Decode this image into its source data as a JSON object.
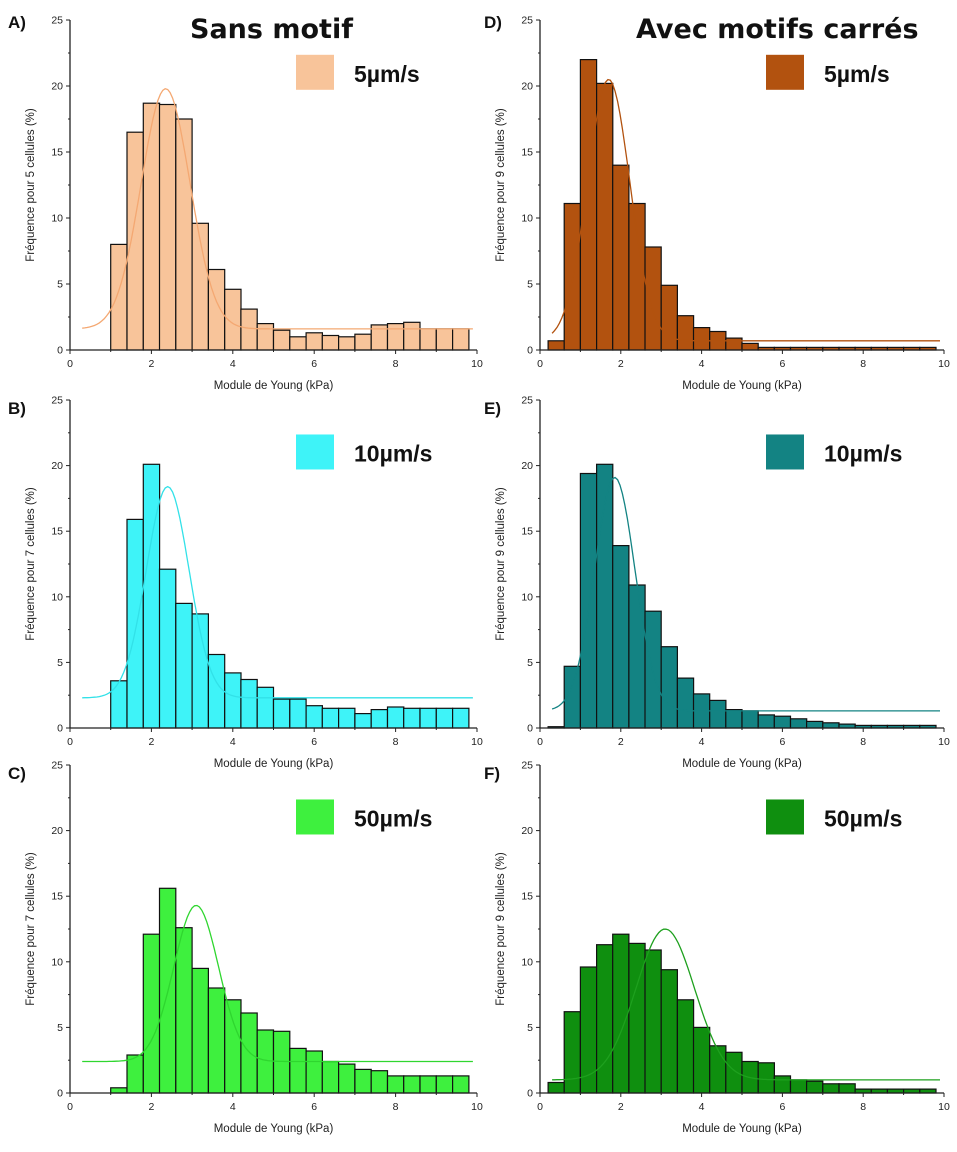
{
  "column_titles": {
    "left": "Sans motif",
    "right": "Avec motifs carrés"
  },
  "chart_data": [
    {
      "type": "bar",
      "panel_label": "A)",
      "legend": "5µm/s",
      "color": "#F8C49A",
      "curve_color": "#F4A872",
      "xlabel": "Module de Young (kPa)",
      "ylabel": "Fréquence pour 5 cellules (%)",
      "xlim": [
        0,
        10
      ],
      "ylim": [
        0,
        25
      ],
      "xticks": [
        0,
        2,
        4,
        6,
        8,
        10
      ],
      "yticks": [
        0,
        5,
        10,
        15,
        20,
        25
      ],
      "bin_width": 0.4,
      "x": [
        1.2,
        1.6,
        2.0,
        2.4,
        2.8,
        3.2,
        3.6,
        4.0,
        4.4,
        4.8,
        5.2,
        5.6,
        6.0,
        6.4,
        6.8,
        7.2,
        7.6,
        8.0,
        8.4,
        8.8,
        9.2,
        9.6
      ],
      "values": [
        8.0,
        16.5,
        18.7,
        18.6,
        17.5,
        9.6,
        6.1,
        4.6,
        3.1,
        2.0,
        1.5,
        1.0,
        1.3,
        1.1,
        1.0,
        1.2,
        1.9,
        2.0,
        2.1,
        1.6,
        1.6,
        1.6
      ],
      "fit": {
        "y0": 1.6,
        "xc": 2.35,
        "w": 1.2,
        "A": 18.2,
        "xstart": 0.3,
        "xend": 9.9
      }
    },
    {
      "type": "bar",
      "panel_label": "B)",
      "legend": "10µm/s",
      "color": "#3EF3F8",
      "curve_color": "#32E1E8",
      "xlabel": "Module de Young (kPa)",
      "ylabel": "Fréquence pour 7 cellules (%)",
      "xlim": [
        0,
        10
      ],
      "ylim": [
        0,
        25
      ],
      "xticks": [
        0,
        2,
        4,
        6,
        8,
        10
      ],
      "yticks": [
        0,
        5,
        10,
        15,
        20,
        25
      ],
      "bin_width": 0.4,
      "x": [
        1.2,
        1.6,
        2.0,
        2.4,
        2.8,
        3.2,
        3.6,
        4.0,
        4.4,
        4.8,
        5.2,
        5.6,
        6.0,
        6.4,
        6.8,
        7.2,
        7.6,
        8.0,
        8.4,
        8.8,
        9.2,
        9.6
      ],
      "values": [
        3.6,
        15.9,
        20.1,
        12.1,
        9.5,
        8.7,
        5.6,
        4.2,
        3.7,
        3.1,
        2.2,
        2.2,
        1.7,
        1.5,
        1.5,
        1.1,
        1.4,
        1.6,
        1.5,
        1.5,
        1.5,
        1.5
      ],
      "fit": {
        "y0": 2.3,
        "xc": 2.4,
        "w": 1.05,
        "A": 16.1,
        "xstart": 0.3,
        "xend": 9.9
      }
    },
    {
      "type": "bar",
      "panel_label": "C)",
      "legend": "50µm/s",
      "color": "#3EF03E",
      "curve_color": "#2FD62F",
      "xlabel": "Module de Young (kPa)",
      "ylabel": "Fréquence pour 7 cellules (%)",
      "xlim": [
        0,
        10
      ],
      "ylim": [
        0,
        25
      ],
      "xticks": [
        0,
        2,
        4,
        6,
        8,
        10
      ],
      "yticks": [
        0,
        5,
        10,
        15,
        20,
        25
      ],
      "bin_width": 0.4,
      "x": [
        1.2,
        1.6,
        2.0,
        2.4,
        2.8,
        3.2,
        3.6,
        4.0,
        4.4,
        4.8,
        5.2,
        5.6,
        6.0,
        6.4,
        6.8,
        7.2,
        7.6,
        8.0,
        8.4,
        8.8,
        9.2,
        9.6
      ],
      "values": [
        0.4,
        2.9,
        12.1,
        15.6,
        12.6,
        9.5,
        8.0,
        7.1,
        6.1,
        4.8,
        4.7,
        3.4,
        3.2,
        2.4,
        2.2,
        1.8,
        1.7,
        1.3,
        1.3,
        1.3,
        1.3,
        1.3
      ],
      "fit": {
        "y0": 2.4,
        "xc": 3.1,
        "w": 1.1,
        "A": 11.9,
        "xstart": 0.3,
        "xend": 9.9
      }
    },
    {
      "type": "bar",
      "panel_label": "D)",
      "legend": "5µm/s",
      "color": "#B2520F",
      "curve_color": "#B2520F",
      "xlabel": "Module de Young (kPa)",
      "ylabel": "Fréquence pour 9 cellules (%)",
      "xlim": [
        0,
        10
      ],
      "ylim": [
        0,
        25
      ],
      "xticks": [
        0,
        2,
        4,
        6,
        8,
        10
      ],
      "yticks": [
        0,
        5,
        10,
        15,
        20,
        25
      ],
      "bin_width": 0.4,
      "x": [
        0.4,
        0.8,
        1.2,
        1.6,
        2.0,
        2.4,
        2.8,
        3.2,
        3.6,
        4.0,
        4.4,
        4.8,
        5.2,
        5.6,
        6.0,
        6.4,
        6.8,
        7.2,
        7.6,
        8.0,
        8.4,
        8.8,
        9.2,
        9.6
      ],
      "values": [
        0.7,
        11.1,
        22.0,
        20.2,
        14.0,
        11.1,
        7.8,
        4.9,
        2.6,
        1.7,
        1.4,
        0.9,
        0.5,
        0.2,
        0.2,
        0.2,
        0.2,
        0.2,
        0.2,
        0.2,
        0.2,
        0.2,
        0.2,
        0.2
      ],
      "fit": {
        "y0": 0.7,
        "xc": 1.7,
        "w": 1.05,
        "A": 19.8,
        "xstart": 0.3,
        "xend": 9.9
      }
    },
    {
      "type": "bar",
      "panel_label": "E)",
      "legend": "10µm/s",
      "color": "#138383",
      "curve_color": "#138383",
      "xlabel": "Module de Young (kPa)",
      "ylabel": "Fréquence pour 9 cellules (%)",
      "xlim": [
        0,
        10
      ],
      "ylim": [
        0,
        25
      ],
      "xticks": [
        0,
        2,
        4,
        6,
        8,
        10
      ],
      "yticks": [
        0,
        5,
        10,
        15,
        20,
        25
      ],
      "bin_width": 0.4,
      "x": [
        0.4,
        0.8,
        1.2,
        1.6,
        2.0,
        2.4,
        2.8,
        3.2,
        3.6,
        4.0,
        4.4,
        4.8,
        5.2,
        5.6,
        6.0,
        6.4,
        6.8,
        7.2,
        7.6,
        8.0,
        8.4,
        8.8,
        9.2,
        9.6
      ],
      "values": [
        0.1,
        4.7,
        19.4,
        20.1,
        13.9,
        10.9,
        8.9,
        6.2,
        3.8,
        2.6,
        2.1,
        1.4,
        1.3,
        1.0,
        0.9,
        0.7,
        0.5,
        0.4,
        0.3,
        0.2,
        0.2,
        0.2,
        0.2,
        0.2
      ],
      "fit": {
        "y0": 1.3,
        "xc": 1.85,
        "w": 1.0,
        "A": 17.8,
        "xstart": 0.3,
        "xend": 9.9
      }
    },
    {
      "type": "bar",
      "panel_label": "F)",
      "legend": "50µm/s",
      "color": "#0F8F0F",
      "curve_color": "#1EA01E",
      "xlabel": "Module de Young (kPa)",
      "ylabel": "Fréquence pour 9 cellules (%)",
      "xlim": [
        0,
        10
      ],
      "ylim": [
        0,
        25
      ],
      "xticks": [
        0,
        2,
        4,
        6,
        8,
        10
      ],
      "yticks": [
        0,
        5,
        10,
        15,
        20,
        25
      ],
      "bin_width": 0.4,
      "x": [
        0.4,
        0.8,
        1.2,
        1.6,
        2.0,
        2.4,
        2.8,
        3.2,
        3.6,
        4.0,
        4.4,
        4.8,
        5.2,
        5.6,
        6.0,
        6.4,
        6.8,
        7.2,
        7.6,
        8.0,
        8.4,
        8.8,
        9.2,
        9.6
      ],
      "values": [
        0.8,
        6.2,
        9.6,
        11.3,
        12.1,
        11.4,
        10.9,
        9.4,
        7.1,
        5.0,
        3.6,
        3.1,
        2.4,
        2.3,
        1.3,
        1.0,
        0.9,
        0.7,
        0.7,
        0.3,
        0.3,
        0.3,
        0.3,
        0.3
      ],
      "fit": {
        "y0": 1.0,
        "xc": 3.1,
        "w": 1.45,
        "A": 11.5,
        "xstart": 0.3,
        "xend": 9.9
      }
    }
  ]
}
